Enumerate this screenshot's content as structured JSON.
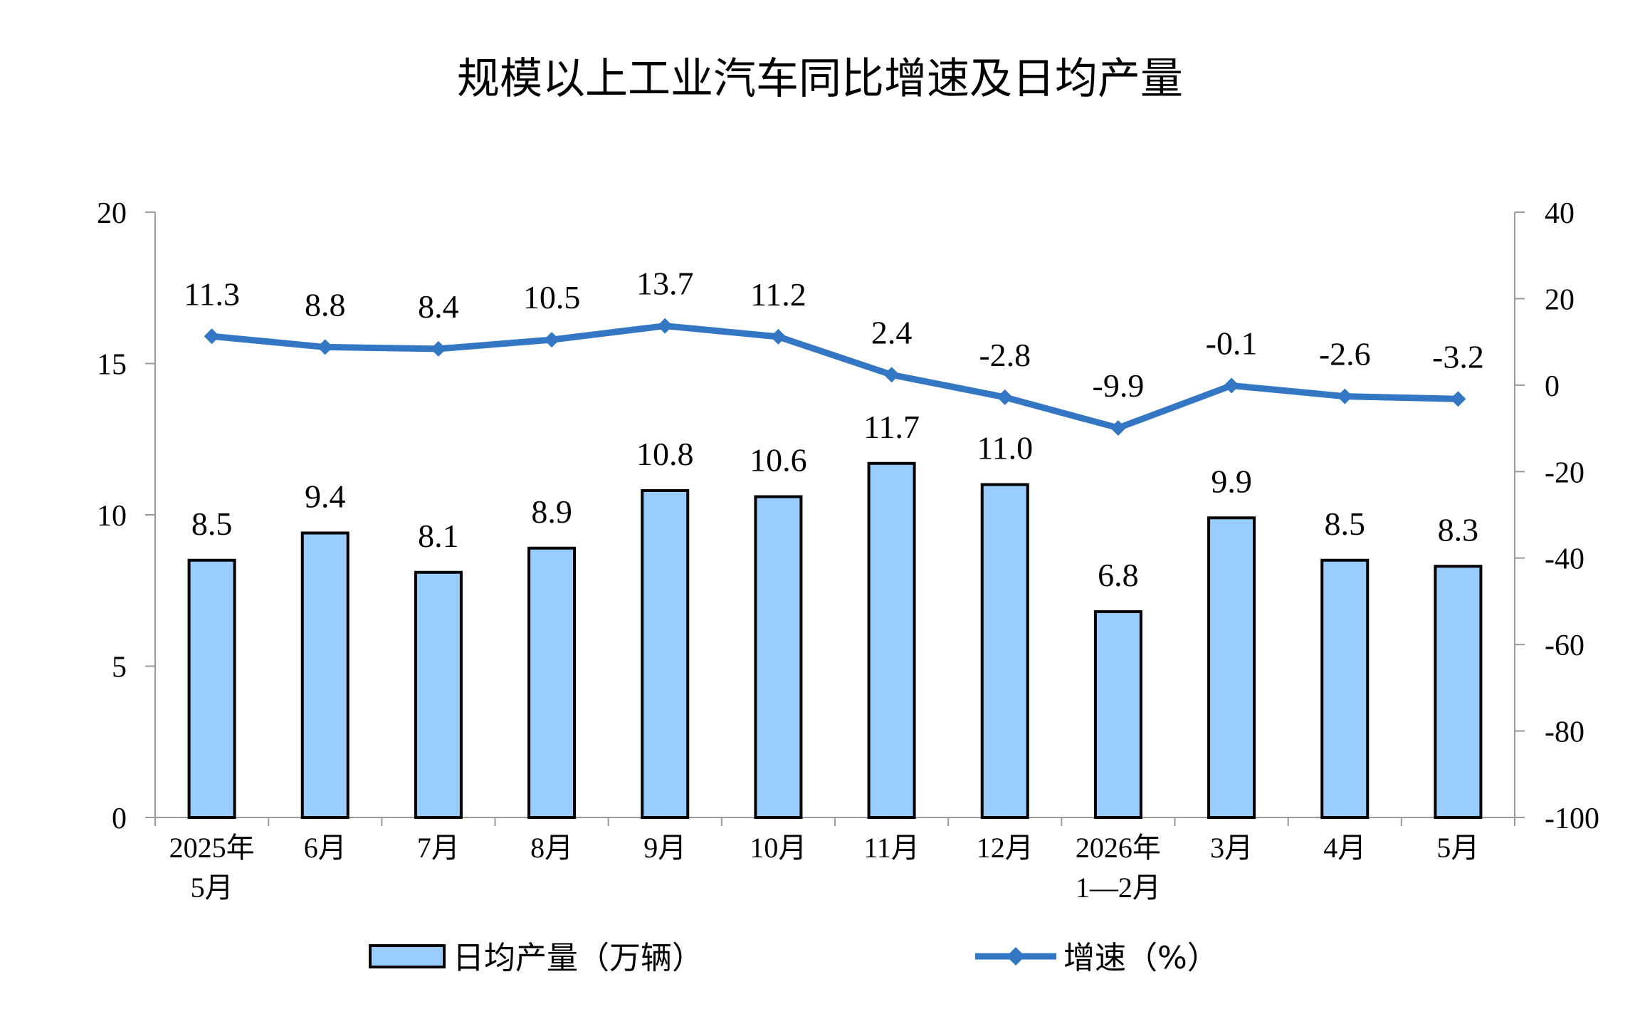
{
  "chart_data": {
    "type": "bar+line",
    "title": "规模以上工业汽车同比增速及日均产量",
    "categories": [
      [
        "2025年",
        "5月"
      ],
      [
        "6月"
      ],
      [
        "7月"
      ],
      [
        "8月"
      ],
      [
        "9月"
      ],
      [
        "10月"
      ],
      [
        "11月"
      ],
      [
        "12月"
      ],
      [
        "2026年",
        "1—2月"
      ],
      [
        "3月"
      ],
      [
        "4月"
      ],
      [
        "5月"
      ]
    ],
    "series": [
      {
        "name": "日均产量（万辆）",
        "kind": "bar",
        "axis": "left",
        "color": "#99CCFF",
        "values": [
          8.5,
          9.4,
          8.1,
          8.9,
          10.8,
          10.6,
          11.7,
          11.0,
          6.8,
          9.9,
          8.5,
          8.3
        ],
        "labels": [
          "8.5",
          "9.4",
          "8.1",
          "8.9",
          "10.8",
          "10.6",
          "11.7",
          "11.0",
          "6.8",
          "9.9",
          "8.5",
          "8.3"
        ]
      },
      {
        "name": "增速（%）",
        "kind": "line",
        "axis": "right",
        "color": "#3377C4",
        "values": [
          11.3,
          8.8,
          8.4,
          10.5,
          13.7,
          11.2,
          2.4,
          -2.8,
          -9.9,
          -0.1,
          -2.6,
          -3.2
        ],
        "labels": [
          "11.3",
          "8.8",
          "8.4",
          "10.5",
          "13.7",
          "11.2",
          "2.4",
          "-2.8",
          "-9.9",
          "-0.1",
          "-2.6",
          "-3.2"
        ]
      }
    ],
    "y_left": {
      "min": 0,
      "max": 20,
      "ticks": [
        "0",
        "5",
        "10",
        "15",
        "20"
      ]
    },
    "y_right": {
      "min": -100,
      "max": 40,
      "ticks": [
        "-100",
        "-80",
        "-60",
        "-40",
        "-20",
        "0",
        "20",
        "40"
      ]
    },
    "legend": {
      "position": "bottom"
    },
    "grid": false
  }
}
